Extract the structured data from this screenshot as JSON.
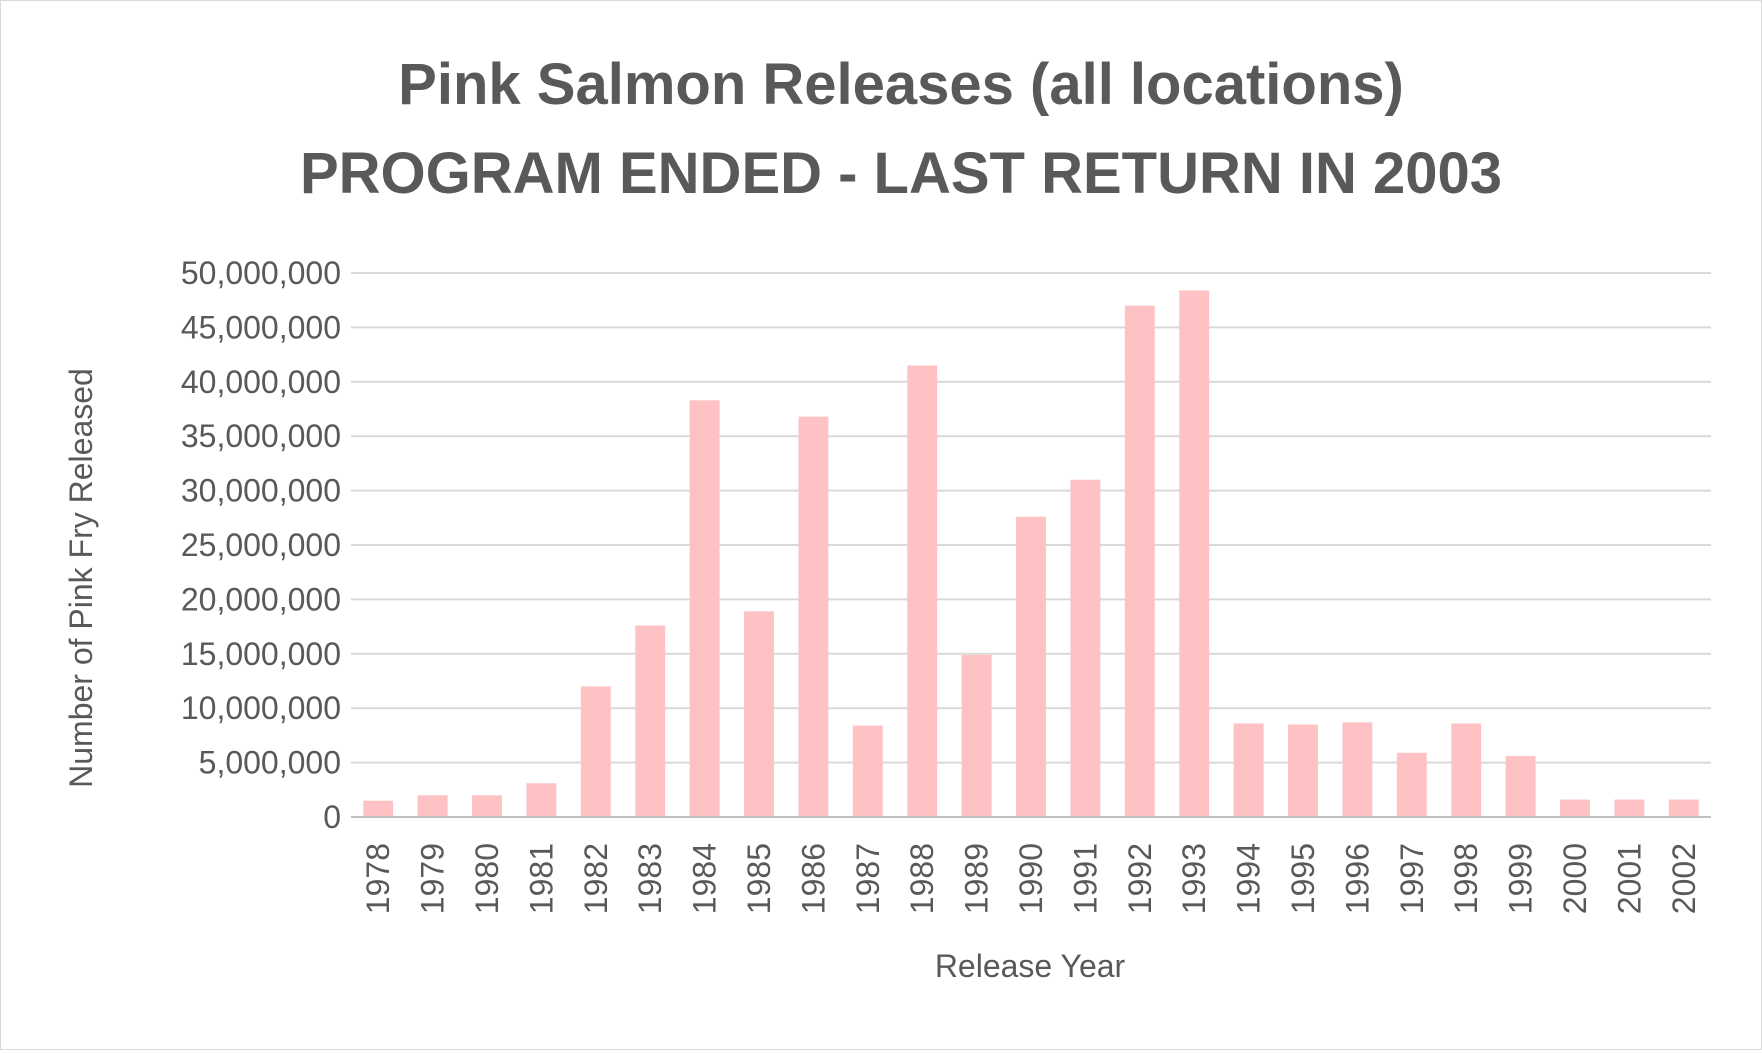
{
  "chart_data": {
    "type": "bar",
    "title": [
      "Pink Salmon Releases (all locations)",
      "PROGRAM ENDED - LAST RETURN IN 2003"
    ],
    "xlabel": "Release Year",
    "ylabel": "Number of Pink Fry Released",
    "ylim": [
      0,
      50000000
    ],
    "yticks": [
      "0",
      "5,000,000",
      "10,000,000",
      "15,000,000",
      "20,000,000",
      "25,000,000",
      "30,000,000",
      "35,000,000",
      "40,000,000",
      "45,000,000",
      "50,000,000"
    ],
    "grid": true,
    "legend": "none",
    "bar_color": "#ffc2c4",
    "categories": [
      "1978",
      "1979",
      "1980",
      "1981",
      "1982",
      "1983",
      "1984",
      "1985",
      "1986",
      "1987",
      "1988",
      "1989",
      "1990",
      "1991",
      "1992",
      "1993",
      "1994",
      "1995",
      "1996",
      "1997",
      "1998",
      "1999",
      "2000",
      "2001",
      "2002"
    ],
    "values": [
      1500000,
      2000000,
      2000000,
      3100000,
      12000000,
      17600000,
      38300000,
      18900000,
      36800000,
      8400000,
      41500000,
      14900000,
      27600000,
      31000000,
      47000000,
      48400000,
      8600000,
      8500000,
      8700000,
      5900000,
      8600000,
      5600000,
      1600000,
      1600000,
      1600000
    ]
  }
}
